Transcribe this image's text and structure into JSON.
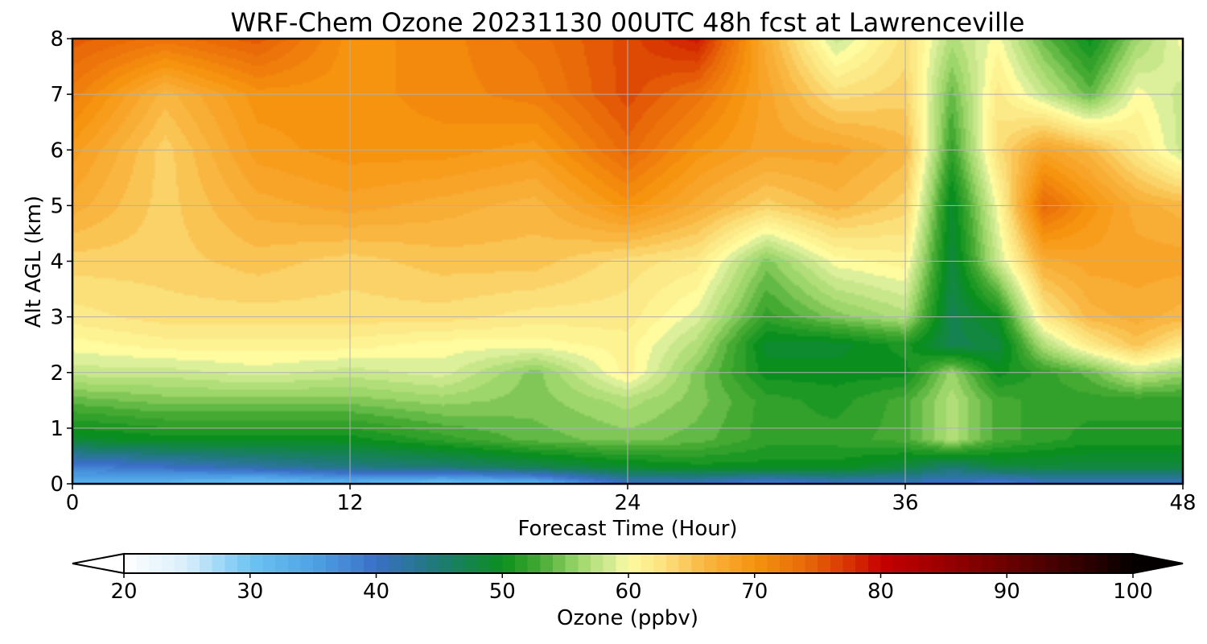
{
  "chart_data": {
    "type": "heatmap",
    "title": "WRF-Chem Ozone  20231130 00UTC 48h fcst at Lawrenceville",
    "xlabel": "Forecast Time (Hour)",
    "ylabel": "Alt AGL (km)",
    "xlim": [
      0,
      48
    ],
    "ylim": [
      0,
      8
    ],
    "xticks": [
      0,
      12,
      24,
      36,
      48
    ],
    "yticks": [
      0,
      1,
      2,
      3,
      4,
      5,
      6,
      7,
      8
    ],
    "grid": true,
    "x_hours": [
      0,
      4,
      8,
      12,
      16,
      20,
      24,
      27,
      30,
      33,
      36,
      38,
      40,
      42,
      44,
      46,
      48
    ],
    "z_km": [
      0,
      0.3,
      0.8,
      1.5,
      2.0,
      2.5,
      3.0,
      4.0,
      5.0,
      6.0,
      7.0,
      8.0
    ],
    "ozone_ppbv": [
      [
        33,
        32,
        30,
        32,
        30,
        32,
        40,
        40,
        38,
        40,
        40,
        40,
        38,
        40,
        40,
        40,
        40
      ],
      [
        38,
        40,
        42,
        44,
        45,
        47,
        49,
        50,
        50,
        50,
        48,
        45,
        48,
        48,
        48,
        48,
        48
      ],
      [
        49,
        50,
        50,
        50,
        52,
        54,
        55,
        54,
        52,
        52,
        53,
        57,
        53,
        52,
        51,
        51,
        51
      ],
      [
        54,
        55,
        55,
        55,
        56,
        55,
        57,
        55,
        52,
        51,
        53,
        57,
        53,
        52,
        52,
        52,
        52
      ],
      [
        58,
        58,
        59,
        58,
        59,
        55,
        61,
        55,
        50,
        50,
        50,
        56,
        50,
        52,
        54,
        58,
        56
      ],
      [
        60,
        61,
        61,
        61,
        60,
        60,
        61,
        57,
        49,
        49,
        51,
        47,
        48,
        57,
        62,
        65,
        62
      ],
      [
        62,
        63,
        63,
        63,
        63,
        62,
        62,
        59,
        52,
        55,
        57,
        47,
        50,
        62,
        66,
        67,
        66
      ],
      [
        64,
        64,
        65,
        64,
        65,
        65,
        63,
        62,
        55,
        60,
        61,
        48,
        58,
        67,
        68,
        68,
        68
      ],
      [
        67,
        64,
        67,
        68,
        67,
        66,
        70,
        67,
        64,
        66,
        64,
        49,
        60,
        74,
        70,
        67,
        66
      ],
      [
        69,
        64,
        69,
        70,
        70,
        69,
        74,
        70,
        68,
        68,
        66,
        52,
        63,
        68,
        66,
        62,
        58
      ],
      [
        72,
        66,
        70,
        70,
        71,
        72,
        76,
        73,
        68,
        63,
        64,
        54,
        62,
        58,
        54,
        60,
        58
      ],
      [
        75,
        73,
        75,
        70,
        71,
        73,
        76,
        79,
        67,
        58,
        63,
        57,
        60,
        54,
        50,
        56,
        60
      ]
    ],
    "colorbar": {
      "label": "Ozone  (ppbv)",
      "min": 20,
      "max": 100,
      "ticks": [
        20,
        30,
        40,
        50,
        60,
        70,
        80,
        90,
        100
      ],
      "extend": "both",
      "placement": "bottom",
      "stops": [
        [
          20,
          "#ffffff"
        ],
        [
          25,
          "#d8eefb"
        ],
        [
          30,
          "#6cc4f2"
        ],
        [
          35,
          "#4ea3e6"
        ],
        [
          40,
          "#3b6fc8"
        ],
        [
          45,
          "#1d7b73"
        ],
        [
          50,
          "#0a8f1e"
        ],
        [
          53,
          "#45aa32"
        ],
        [
          56,
          "#9dd66a"
        ],
        [
          59,
          "#dcef9a"
        ],
        [
          60,
          "#fffca0"
        ],
        [
          63,
          "#fbe07a"
        ],
        [
          66,
          "#f9b640"
        ],
        [
          70,
          "#f6930f"
        ],
        [
          74,
          "#e96a08"
        ],
        [
          78,
          "#d42a00"
        ],
        [
          80,
          "#c60000"
        ],
        [
          85,
          "#9a0000"
        ],
        [
          90,
          "#6c0000"
        ],
        [
          95,
          "#3a0000"
        ],
        [
          100,
          "#050000"
        ]
      ]
    }
  }
}
